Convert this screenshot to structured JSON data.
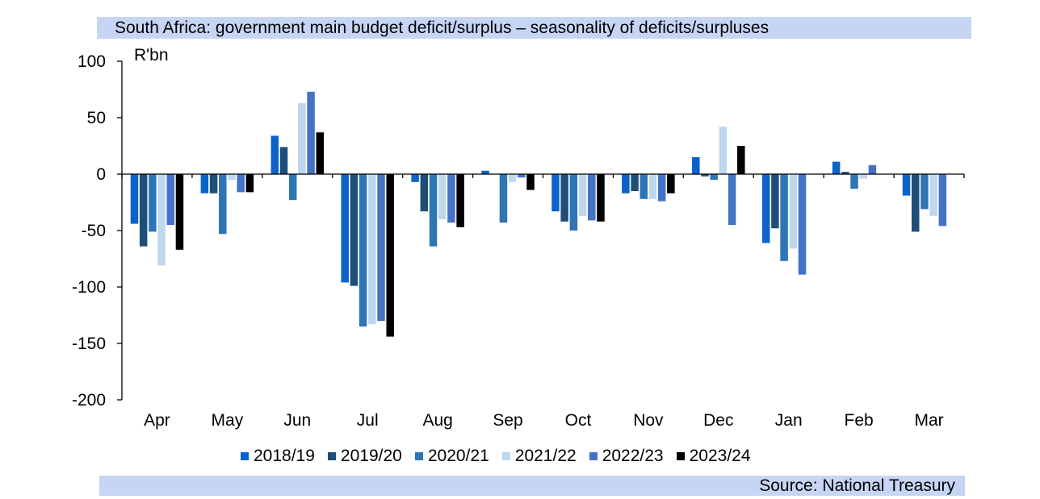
{
  "title": "South Africa: government main budget deficit/surplus – seasonality of deficits/surpluses",
  "source": "Source: National Treasury",
  "chart_data": {
    "type": "bar",
    "title": "South Africa: government main budget deficit/surplus – seasonality of deficits/surpluses",
    "ylabel": "R'bn",
    "xlabel": "",
    "ylim": [
      -200,
      100
    ],
    "yticks": [
      100,
      50,
      0,
      -50,
      -100,
      -150,
      -200
    ],
    "ytick_labels": [
      "100",
      "50",
      "0",
      "-50",
      "-100",
      "-150",
      "-200"
    ],
    "categories": [
      "Apr",
      "May",
      "Jun",
      "Jul",
      "Aug",
      "Sep",
      "Oct",
      "Nov",
      "Dec",
      "Jan",
      "Feb",
      "Mar"
    ],
    "legend_position": "bottom",
    "series": [
      {
        "name": "2018/19",
        "color": "#0b63c9",
        "values": [
          -44,
          -17,
          34,
          -96,
          -7,
          3,
          -33,
          -17,
          15,
          -61,
          11,
          -19
        ]
      },
      {
        "name": "2019/20",
        "color": "#1f4e79",
        "values": [
          -64,
          -17,
          24,
          -99,
          -33,
          0,
          -42,
          -15,
          -2,
          -48,
          2,
          -51
        ]
      },
      {
        "name": "2020/21",
        "color": "#2e75b6",
        "values": [
          -51,
          -53,
          -23,
          -135,
          -64,
          -43,
          -50,
          -22,
          -5,
          -77,
          -13,
          -31
        ]
      },
      {
        "name": "2021/22",
        "color": "#bdd7ee",
        "values": [
          -81,
          -5,
          63,
          -133,
          -40,
          -7,
          -37,
          -22,
          42,
          -66,
          -4,
          -37
        ]
      },
      {
        "name": "2022/23",
        "color": "#4472c4",
        "values": [
          -45,
          -16,
          73,
          -130,
          -43,
          -3,
          -41,
          -24,
          -45,
          -89,
          8,
          -46
        ]
      },
      {
        "name": "2023/24",
        "color": "#000000",
        "values": [
          -67,
          -16,
          37,
          -144,
          -47,
          -14,
          -42,
          -17,
          25,
          null,
          null,
          null
        ]
      }
    ]
  }
}
